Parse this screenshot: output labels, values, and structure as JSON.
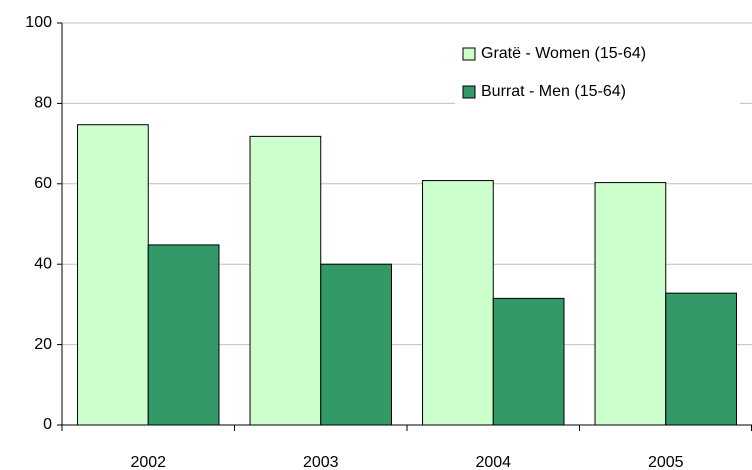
{
  "chart_data": {
    "type": "bar",
    "categories": [
      "2002",
      "2003",
      "2004",
      "2005"
    ],
    "series": [
      {
        "name": "Gratë - Women (15-64)",
        "color": "#ccffcc",
        "values": [
          74.7,
          71.8,
          60.8,
          60.3
        ]
      },
      {
        "name": "Burrat - Men (15-64)",
        "color": "#339966",
        "values": [
          44.8,
          40.0,
          31.5,
          32.8
        ]
      }
    ],
    "ylim": [
      0,
      100
    ],
    "yticks": [
      0,
      20,
      40,
      60,
      80,
      100
    ],
    "grid": true,
    "legend": "upper right"
  }
}
